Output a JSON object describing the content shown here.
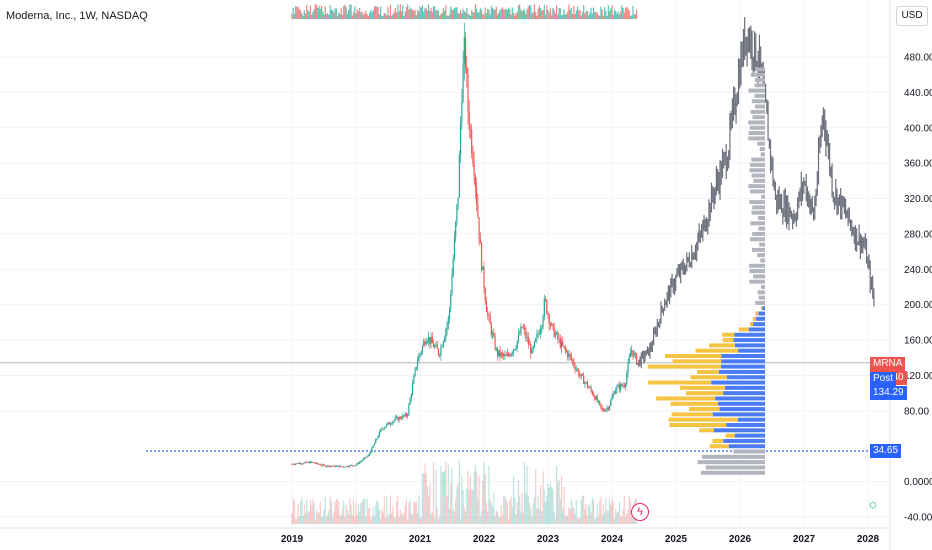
{
  "header": {
    "title": "Moderna, Inc., 1W, NASDAQ",
    "currency": "USD"
  },
  "badges": {
    "last": {
      "symbol": "MRNA",
      "value": "134.40"
    },
    "post": {
      "label": "Post",
      "value": "134.29"
    },
    "level": "34.65"
  },
  "colors": {
    "up": "#26a69a",
    "down": "#ef5350",
    "projection": "#6b6f7b",
    "vp_up": "#4a7cf5",
    "vp_down": "#f6c342",
    "level_line": "#2962ff"
  },
  "chart_data": {
    "type": "candlestick",
    "title": "Moderna, Inc., 1W, NASDAQ",
    "xlabel": "",
    "ylabel": "",
    "ylim": [
      -40,
      500
    ],
    "x_ticks": [
      "2019",
      "2020",
      "2021",
      "2022",
      "2023",
      "2024",
      "2025",
      "2026",
      "2027",
      "2028"
    ],
    "y_ticks": [
      "480.00",
      "440.00",
      "400.00",
      "360.00",
      "320.00",
      "280.00",
      "240.00",
      "200.00",
      "160.00",
      "120.00",
      "80.00",
      "0.0000",
      "-40.00"
    ],
    "price_series": [
      [
        2019.0,
        20
      ],
      [
        2019.3,
        22
      ],
      [
        2019.5,
        18
      ],
      [
        2019.8,
        17
      ],
      [
        2020.0,
        19
      ],
      [
        2020.2,
        30
      ],
      [
        2020.4,
        60
      ],
      [
        2020.6,
        70
      ],
      [
        2020.8,
        75
      ],
      [
        2020.95,
        135
      ],
      [
        2021.1,
        165
      ],
      [
        2021.3,
        145
      ],
      [
        2021.45,
        185
      ],
      [
        2021.6,
        330
      ],
      [
        2021.65,
        440
      ],
      [
        2021.7,
        495
      ],
      [
        2021.75,
        420
      ],
      [
        2021.85,
        355
      ],
      [
        2021.95,
        255
      ],
      [
        2022.05,
        190
      ],
      [
        2022.2,
        145
      ],
      [
        2022.35,
        140
      ],
      [
        2022.5,
        155
      ],
      [
        2022.6,
        175
      ],
      [
        2022.75,
        145
      ],
      [
        2022.9,
        180
      ],
      [
        2022.95,
        205
      ],
      [
        2023.05,
        175
      ],
      [
        2023.2,
        155
      ],
      [
        2023.35,
        140
      ],
      [
        2023.5,
        120
      ],
      [
        2023.7,
        100
      ],
      [
        2023.85,
        80
      ],
      [
        2023.95,
        85
      ],
      [
        2024.05,
        105
      ],
      [
        2024.2,
        110
      ],
      [
        2024.3,
        150
      ],
      [
        2024.4,
        134
      ]
    ],
    "projection_series": [
      [
        2024.4,
        134
      ],
      [
        2024.6,
        150
      ],
      [
        2024.8,
        200
      ],
      [
        2025.0,
        230
      ],
      [
        2025.2,
        250
      ],
      [
        2025.4,
        280
      ],
      [
        2025.6,
        330
      ],
      [
        2025.8,
        370
      ],
      [
        2026.0,
        470
      ],
      [
        2026.1,
        510
      ],
      [
        2026.3,
        475
      ],
      [
        2026.4,
        420
      ],
      [
        2026.55,
        320
      ],
      [
        2026.7,
        310
      ],
      [
        2026.85,
        300
      ],
      [
        2027.0,
        340
      ],
      [
        2027.15,
        300
      ],
      [
        2027.3,
        420
      ],
      [
        2027.45,
        330
      ],
      [
        2027.6,
        310
      ],
      [
        2027.8,
        280
      ],
      [
        2027.95,
        265
      ],
      [
        2028.1,
        200
      ]
    ],
    "level_line": 34.65,
    "last_price": 134.4,
    "post_price": 134.29
  }
}
